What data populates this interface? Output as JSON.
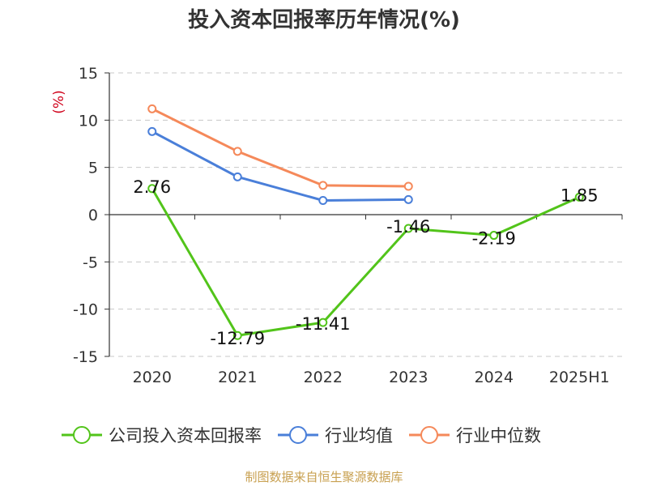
{
  "chart_data": {
    "type": "line",
    "title": "投入资本回报率历年情况(%)",
    "ylabel": "(%)",
    "categories": [
      "2020",
      "2021",
      "2022",
      "2023",
      "2024",
      "2025H1"
    ],
    "ylim": [
      -15,
      15
    ],
    "yticks": [
      15,
      10,
      5,
      0,
      -5,
      -10,
      -15
    ],
    "grid": true,
    "legend_position": "bottom",
    "series": [
      {
        "name": "公司投入资本回报率",
        "color": "#52c41a",
        "values": [
          2.76,
          -12.79,
          -11.41,
          -1.46,
          -2.19,
          1.85
        ],
        "labels": [
          "2.76",
          "-12.79",
          "-11.41",
          "-1.46",
          "-2.19",
          "1.85"
        ]
      },
      {
        "name": "行业均值",
        "color": "#4a7fd9",
        "values": [
          8.8,
          4.0,
          1.5,
          1.6,
          null,
          null
        ]
      },
      {
        "name": "行业中位数",
        "color": "#f5895a",
        "values": [
          11.2,
          6.7,
          3.1,
          3.0,
          null,
          null
        ]
      }
    ]
  },
  "source": "制图数据来自恒生聚源数据库"
}
